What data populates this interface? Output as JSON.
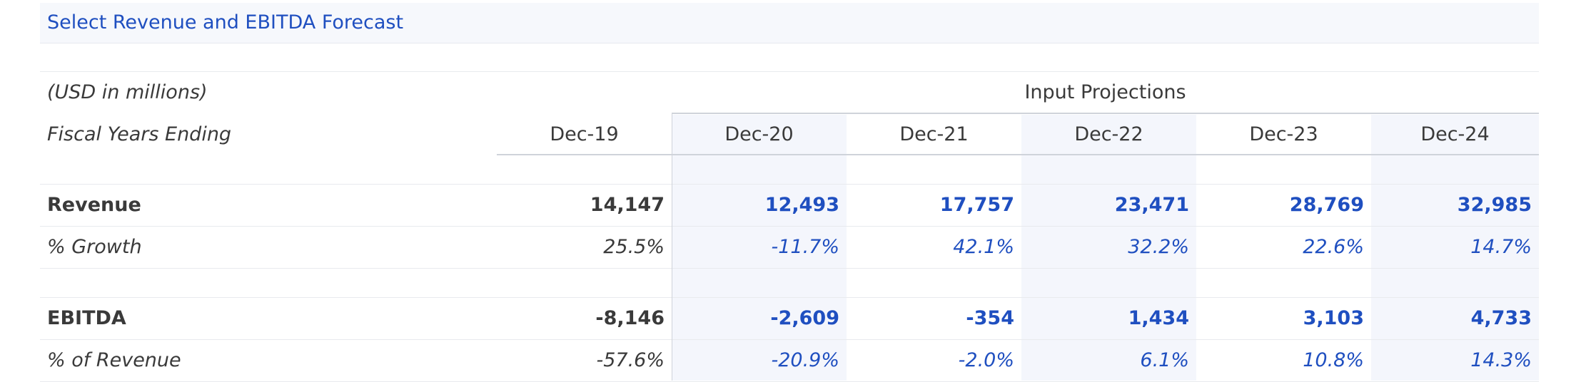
{
  "title": "Select Revenue and EBITDA Forecast",
  "units_label": "(USD in millions)",
  "projections_label": "Input Projections",
  "fiscal_label": "Fiscal Years Ending",
  "years": [
    "Dec-19",
    "Dec-20",
    "Dec-21",
    "Dec-22",
    "Dec-23",
    "Dec-24"
  ],
  "rows": {
    "revenue": {
      "label": "Revenue",
      "values": [
        "14,147",
        "12,493",
        "17,757",
        "23,471",
        "28,769",
        "32,985"
      ]
    },
    "revenue_growth": {
      "label": "% Growth",
      "values": [
        "25.5%",
        "-11.7%",
        "42.1%",
        "32.2%",
        "22.6%",
        "14.7%"
      ]
    },
    "ebitda": {
      "label": "EBITDA",
      "values": [
        "-8,146",
        "-2,609",
        "-354",
        "1,434",
        "3,103",
        "4,733"
      ]
    },
    "ebitda_margin": {
      "label": "% of Revenue",
      "values": [
        "-57.6%",
        "-20.9%",
        "-2.0%",
        "6.1%",
        "10.8%",
        "14.3%"
      ]
    }
  },
  "colors": {
    "input_blue": "#1f4fc0",
    "shade": "#f4f6fc",
    "text": "#3a3a3a"
  }
}
